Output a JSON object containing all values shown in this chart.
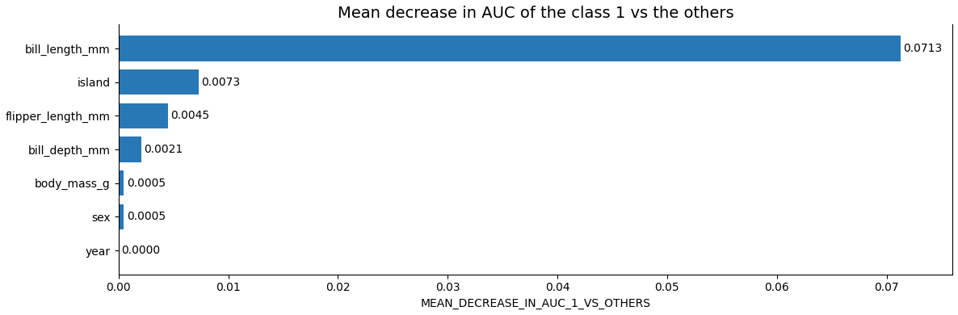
{
  "title": "Mean decrease in AUC of the class 1 vs the others",
  "xlabel": "MEAN_DECREASE_IN_AUC_1_VS_OTHERS",
  "categories": [
    "year",
    "sex",
    "body_mass_g",
    "bill_depth_mm",
    "flipper_length_mm",
    "island",
    "bill_length_mm"
  ],
  "values": [
    0.0,
    0.0005,
    0.0005,
    0.0021,
    0.0045,
    0.0073,
    0.0713
  ],
  "bar_color": "#2878b5",
  "value_labels": [
    "0.0000",
    "0.0005",
    "0.0005",
    "0.0021",
    "0.0045",
    "0.0073",
    "0.0713"
  ],
  "xlim": [
    0,
    0.076
  ],
  "figsize": [
    11.86,
    3.9
  ],
  "dpi": 100,
  "title_fontsize": 14,
  "label_fontsize": 10,
  "tick_fontsize": 10,
  "bar_label_fontsize": 10,
  "bar_height": 0.75
}
